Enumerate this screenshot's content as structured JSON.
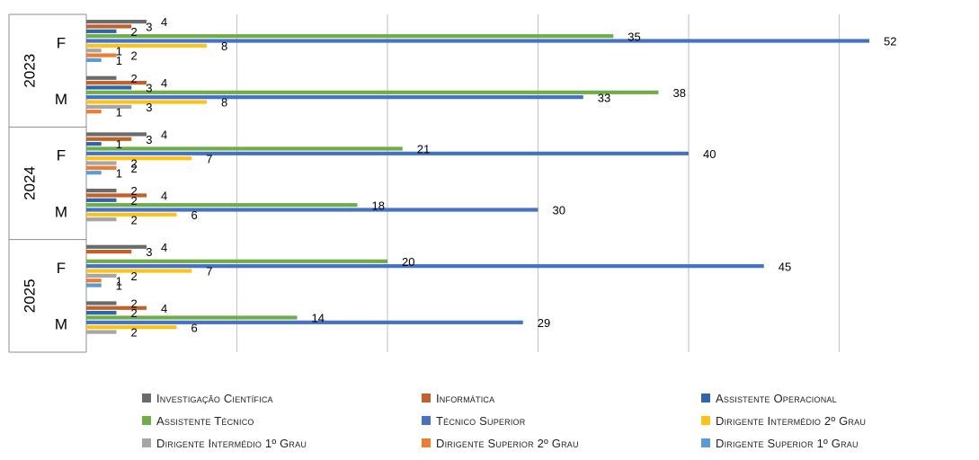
{
  "chart_data": {
    "type": "bar",
    "orientation": "horizontal",
    "grid": true,
    "legend_position": "bottom",
    "xlim": [
      0,
      52
    ],
    "years": [
      "2023",
      "2024",
      "2025"
    ],
    "groups": [
      {
        "year": "2023",
        "sex": "F",
        "values": [
          4,
          3,
          2,
          35,
          52,
          8,
          1,
          2,
          1
        ]
      },
      {
        "year": "2023",
        "sex": "M",
        "values": [
          2,
          4,
          3,
          38,
          33,
          8,
          3,
          1,
          null
        ]
      },
      {
        "year": "2024",
        "sex": "F",
        "values": [
          4,
          3,
          1,
          21,
          40,
          7,
          2,
          2,
          1
        ]
      },
      {
        "year": "2024",
        "sex": "M",
        "values": [
          2,
          4,
          2,
          18,
          30,
          6,
          2,
          null,
          null
        ]
      },
      {
        "year": "2025",
        "sex": "F",
        "values": [
          4,
          3,
          null,
          20,
          45,
          7,
          2,
          1,
          1
        ]
      },
      {
        "year": "2025",
        "sex": "M",
        "values": [
          2,
          4,
          2,
          14,
          29,
          6,
          2,
          null,
          null
        ]
      }
    ],
    "series": [
      {
        "name": "Investigação Científica",
        "color": "#6b6b6b"
      },
      {
        "name": "Informática",
        "color": "#c0622a"
      },
      {
        "name": "Assistente Operacional",
        "color": "#2e67a8"
      },
      {
        "name": "Assistente Técnico",
        "color": "#71ad47"
      },
      {
        "name": "Técnico Superior",
        "color": "#4472c4"
      },
      {
        "name": "Dirigente Intermédio 2º Grau",
        "color": "#fbc21a"
      },
      {
        "name": "Dirigente Intermédio 1º Grau",
        "color": "#a6a6a6"
      },
      {
        "name": "Dirigente Superior 2º Grau",
        "color": "#ed7d31"
      },
      {
        "name": "Dirigente Superior 1º Grau",
        "color": "#5b9bd5"
      }
    ]
  }
}
